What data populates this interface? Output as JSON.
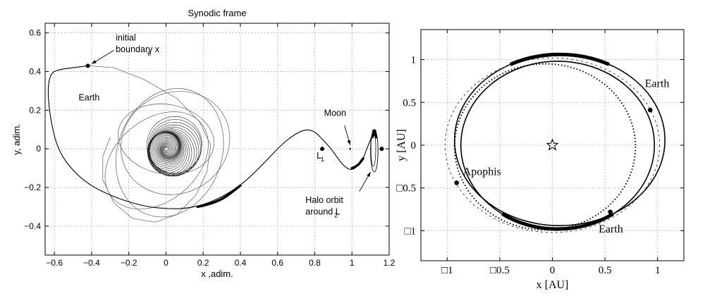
{
  "chart_data": [
    {
      "type": "line",
      "title": "Synodic frame",
      "xlabel": "x ,adim.",
      "ylabel": "y, adim.",
      "xlim": [
        -0.65,
        1.2
      ],
      "ylim": [
        -0.55,
        0.65
      ],
      "x_ticks": [
        -0.6,
        -0.4,
        -0.2,
        0,
        0.2,
        0.4,
        0.6,
        0.8,
        1,
        1.2
      ],
      "x_tick_labels": [
        "−0.6",
        "−0.4",
        "−0.2",
        "0",
        "0.2",
        "0.4",
        "0.6",
        "0.8",
        "1",
        "1.2"
      ],
      "y_ticks": [
        -0.4,
        -0.2,
        0,
        0.2,
        0.4,
        0.6
      ],
      "y_tick_labels": [
        "−0.4",
        "−0.2",
        "0",
        "0.2",
        "0.4",
        "0.6"
      ],
      "grid": true,
      "points": [
        {
          "label": "initial boundary x0",
          "x": -0.42,
          "y": 0.43
        },
        {
          "label": "L1",
          "x": 0.84,
          "y": 0.0
        },
        {
          "label": "Moon",
          "x": 0.99,
          "y": 0.0
        },
        {
          "label": "L2",
          "x": 1.16,
          "y": 0.0
        },
        {
          "label": "Halo orbit marker",
          "x": 1.12,
          "y": 0.09
        }
      ],
      "annotations": [
        {
          "text": "initial",
          "x": -0.27,
          "y": 0.56
        },
        {
          "text": "boundary x",
          "x": -0.27,
          "y": 0.5
        },
        {
          "text": "0",
          "x": -0.1,
          "y": 0.48
        },
        {
          "text": "Earth",
          "x": -0.47,
          "y": 0.25
        },
        {
          "text": "Moon",
          "x": 0.85,
          "y": 0.17
        },
        {
          "text": "L",
          "x": 0.81,
          "y": -0.05
        },
        {
          "text": "1",
          "x": 0.832,
          "y": -0.065
        },
        {
          "text": "Halo orbit",
          "x": 0.75,
          "y": -0.28
        },
        {
          "text": "around L",
          "x": 0.75,
          "y": -0.34
        },
        {
          "text": "2",
          "x": 0.905,
          "y": -0.355
        }
      ],
      "trajectory": [
        [
          -0.42,
          0.43
        ],
        [
          -0.5,
          0.42
        ],
        [
          -0.58,
          0.41
        ],
        [
          -0.62,
          0.39
        ],
        [
          -0.635,
          0.32
        ],
        [
          -0.63,
          0.22
        ],
        [
          -0.61,
          0.1
        ],
        [
          -0.58,
          0.0
        ],
        [
          -0.53,
          -0.08
        ],
        [
          -0.45,
          -0.16
        ],
        [
          -0.35,
          -0.22
        ],
        [
          -0.22,
          -0.27
        ],
        [
          -0.1,
          -0.3
        ],
        [
          0.0,
          -0.31
        ],
        [
          0.1,
          -0.31
        ],
        [
          0.2,
          -0.29
        ],
        [
          0.3,
          -0.25
        ],
        [
          0.4,
          -0.19
        ],
        [
          0.48,
          -0.12
        ],
        [
          0.55,
          -0.05
        ],
        [
          0.62,
          0.02
        ],
        [
          0.67,
          0.06
        ],
        [
          0.72,
          0.09
        ],
        [
          0.76,
          0.1
        ],
        [
          0.8,
          0.09
        ],
        [
          0.84,
          0.05
        ],
        [
          0.88,
          0.01
        ],
        [
          0.91,
          -0.03
        ],
        [
          0.94,
          -0.07
        ],
        [
          0.97,
          -0.1
        ],
        [
          1.0,
          -0.11
        ],
        [
          1.03,
          -0.09
        ],
        [
          1.06,
          -0.05
        ],
        [
          1.08,
          0.0
        ],
        [
          1.1,
          0.05
        ],
        [
          1.12,
          0.09
        ]
      ],
      "thick_segments": [
        [
          [
            0.17,
            -0.3
          ],
          [
            0.28,
            -0.28
          ],
          [
            0.4,
            -0.19
          ]
        ],
        [
          [
            1.0,
            -0.1
          ],
          [
            1.03,
            -0.09
          ],
          [
            1.06,
            -0.05
          ]
        ],
        [
          [
            1.11,
            0.06
          ],
          [
            1.12,
            0.09
          ],
          [
            1.13,
            0.06
          ]
        ]
      ]
    },
    {
      "type": "line",
      "xlabel": "x [AU]",
      "ylabel": "y [AU]",
      "xlim": [
        -1.25,
        1.25
      ],
      "ylim": [
        -1.35,
        1.35
      ],
      "x_ticks": [
        -1,
        -0.5,
        0,
        0.5,
        1
      ],
      "x_tick_labels": [
        "□1",
        "□0.5",
        "0",
        "0.5",
        "1"
      ],
      "y_ticks": [
        -1,
        -0.5,
        0,
        0.5,
        1
      ],
      "y_tick_labels": [
        "□1",
        "□0.5",
        "0",
        "0.5",
        "1"
      ],
      "grid": true,
      "series": [
        {
          "style": "solid",
          "shape": "ellipse",
          "cx": 0.07,
          "cy": 0.06,
          "rx": 1.0,
          "ry": 1.0
        },
        {
          "style": "solid",
          "shape": "ellipse",
          "cx": 0.05,
          "cy": 0.0,
          "rx": 0.92,
          "ry": 0.98
        },
        {
          "style": "dotted",
          "shape": "ellipse",
          "cx": -0.07,
          "cy": -0.02,
          "rx": 0.86,
          "ry": 0.97
        },
        {
          "style": "dashed",
          "shape": "ellipse",
          "cx": 0.0,
          "cy": 0.0,
          "rx": 1.02,
          "ry": 1.02
        }
      ],
      "points": [
        {
          "label": "Sun",
          "x": 0.0,
          "y": 0.0
        },
        {
          "label": "Earth",
          "x": 0.93,
          "y": 0.41
        },
        {
          "label": "Earth",
          "x": 0.55,
          "y": -0.78
        },
        {
          "label": "Apophis",
          "x": -0.91,
          "y": -0.44
        }
      ],
      "annotations": [
        {
          "text": "Earth",
          "x": 0.88,
          "y": 0.68
        },
        {
          "text": "Earth",
          "x": 0.44,
          "y": -1.02
        },
        {
          "text": "Apophis",
          "x": -0.85,
          "y": -0.35
        }
      ]
    }
  ]
}
